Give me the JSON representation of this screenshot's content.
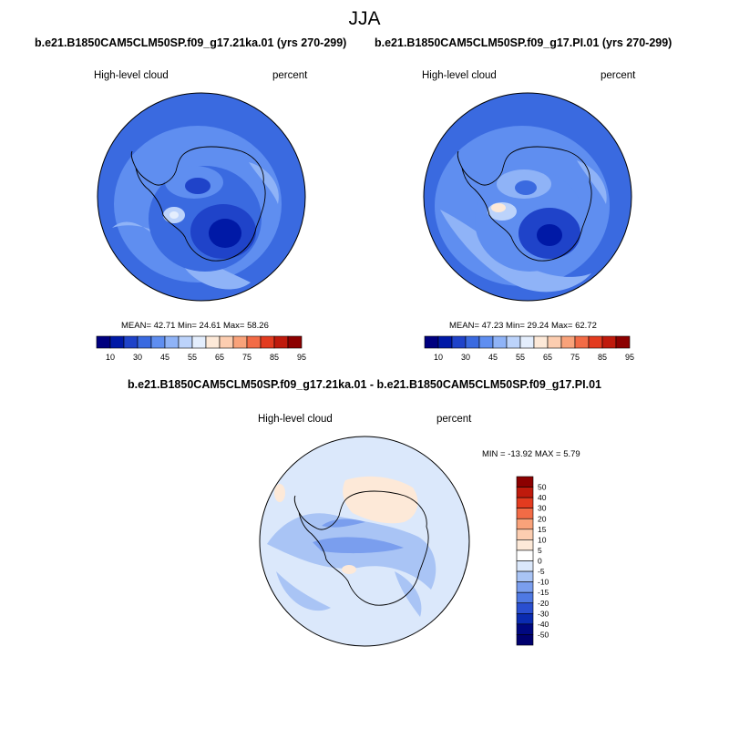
{
  "figure": {
    "season": "JJA"
  },
  "panels": [
    {
      "title": "b.e21.B1850CAM5CLM50SP.f09_g17.21ka.01 (yrs 270-299)",
      "variable": "High-level cloud",
      "units": "percent",
      "stats": "MEAN=  42.71  Min=  24.61  Max=  58.26"
    },
    {
      "title": "b.e21.B1850CAM5CLM50SP.f09_g17.PI.01 (yrs 270-299)",
      "variable": "High-level cloud",
      "units": "percent",
      "stats": "MEAN=  47.23  Min=  29.24  Max=  62.72"
    }
  ],
  "difference": {
    "title": "b.e21.B1850CAM5CLM50SP.f09_g17.21ka.01 - b.e21.B1850CAM5CLM50SP.f09_g17.PI.01",
    "variable": "High-level cloud",
    "units": "percent",
    "stats": "MIN = -13.92 MAX =   5.79"
  },
  "chart_data": [
    {
      "type": "heatmap",
      "projection": "south-polar-stereographic",
      "field": "High-level cloud (percent), 21ka",
      "mean": 42.71,
      "min": 24.61,
      "max": 58.26,
      "colorbar": {
        "orientation": "horizontal",
        "tick_labels": [
          "10",
          "30",
          "45",
          "55",
          "65",
          "75",
          "85",
          "95"
        ],
        "colors": [
          "#00007f",
          "#0019a6",
          "#1f43c9",
          "#3a6ae0",
          "#5f8ef0",
          "#8fb3f7",
          "#bcd3fb",
          "#e4eefd",
          "#fde9d8",
          "#fccdb0",
          "#f9a27a",
          "#f26b46",
          "#e33b1f",
          "#bf1a0c",
          "#8c0000"
        ]
      }
    },
    {
      "type": "heatmap",
      "projection": "south-polar-stereographic",
      "field": "High-level cloud (percent), PI",
      "mean": 47.23,
      "min": 29.24,
      "max": 62.72,
      "colorbar": {
        "orientation": "horizontal",
        "tick_labels": [
          "10",
          "30",
          "45",
          "55",
          "65",
          "75",
          "85",
          "95"
        ],
        "colors": [
          "#00007f",
          "#0019a6",
          "#1f43c9",
          "#3a6ae0",
          "#5f8ef0",
          "#8fb3f7",
          "#bcd3fb",
          "#e4eefd",
          "#fde9d8",
          "#fccdb0",
          "#f9a27a",
          "#f26b46",
          "#e33b1f",
          "#bf1a0c",
          "#8c0000"
        ]
      }
    },
    {
      "type": "heatmap",
      "projection": "south-polar-stereographic",
      "field": "High-level cloud difference (percent)",
      "min": -13.92,
      "max": 5.79,
      "colorbar": {
        "orientation": "vertical",
        "tick_labels": [
          "50",
          "40",
          "30",
          "20",
          "15",
          "10",
          "5",
          "0",
          "-5",
          "-10",
          "-15",
          "-20",
          "-30",
          "-40",
          "-50"
        ],
        "colors": [
          "#8c0000",
          "#bf1a0c",
          "#e33b1f",
          "#f26b46",
          "#f9a27a",
          "#fccdb0",
          "#fde9d8",
          "#ffffff",
          "#dbe8fb",
          "#a9c4f5",
          "#7a9eee",
          "#4f79e3",
          "#2a4fd0",
          "#0a2bb0",
          "#000880",
          "#00006e"
        ]
      }
    }
  ]
}
